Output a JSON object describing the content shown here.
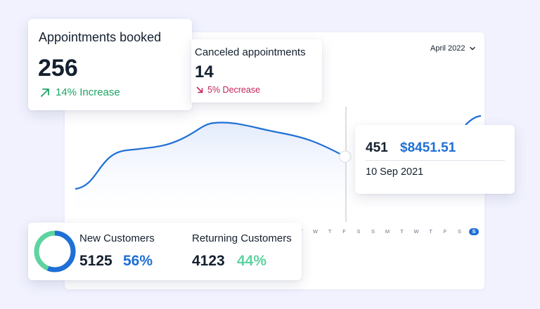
{
  "month_selector": {
    "label": "April 2022"
  },
  "appointments_booked": {
    "title": "Appointments booked",
    "value": "256",
    "delta": "14% Increase",
    "color": "#1fa565"
  },
  "canceled_appointments": {
    "title": "Canceled appointments",
    "value": "14",
    "delta": "5% Decrease",
    "color": "#c4245c"
  },
  "tooltip": {
    "count": "451",
    "amount": "$8451.51",
    "date": "10 Sep 2021"
  },
  "customers": {
    "new_label": "New Customers",
    "new_value": "5125",
    "new_pct": "56%",
    "new_color": "#1f6fd6",
    "returning_label": "Returning Customers",
    "returning_value": "4123",
    "returning_pct": "44%",
    "returning_color": "#5fd3a0"
  },
  "day_labels": [
    "T",
    "W",
    "T",
    "F",
    "S",
    "S",
    "M",
    "T",
    "W",
    "T",
    "F",
    "S",
    "S"
  ],
  "active_day_index": 12,
  "icons": {
    "increase": "arrow-up-right-icon",
    "decrease": "arrow-down-right-icon",
    "dropdown": "chevron-down-icon"
  }
}
